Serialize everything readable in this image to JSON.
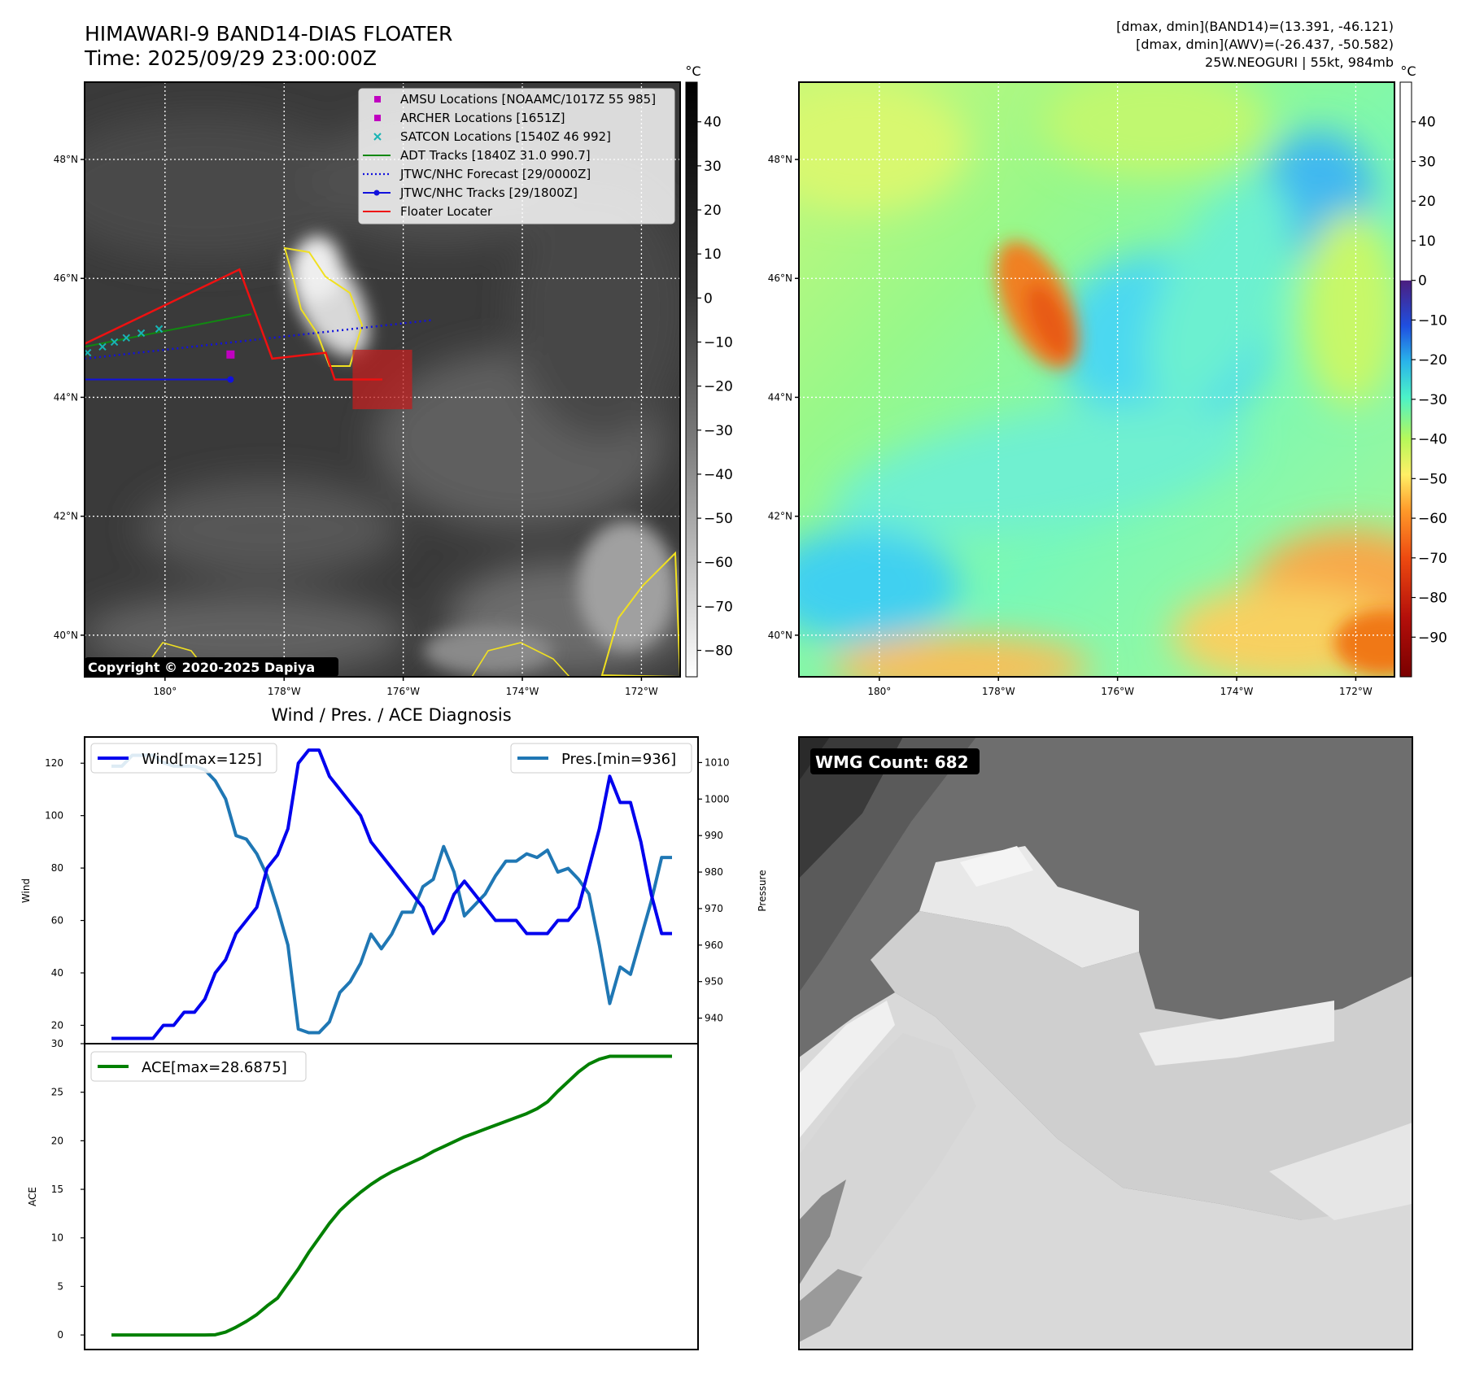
{
  "header": {
    "title_line1": "HIMAWARI-9 BAND14-DIAS FLOATER",
    "title_line2": "Time: 2025/09/29 23:00:00Z",
    "info_line1": "[dmax, dmin](BAND14)=(13.391, -46.121)",
    "info_line2": "[dmax, dmin](AWV)=(-26.437, -50.582)",
    "info_line3": "25W.NEOGURI | 55kt, 984mb"
  },
  "map": {
    "lat_labels": [
      "48°N",
      "46°N",
      "44°N",
      "42°N",
      "40°N"
    ],
    "lat_values": [
      48,
      46,
      44,
      42,
      40
    ],
    "lon_labels": [
      "180°",
      "178°W",
      "176°W",
      "174°W",
      "172°W"
    ],
    "lon_values": [
      180,
      178,
      176,
      174,
      172
    ],
    "lat_range": [
      39.3,
      49.3
    ],
    "lon_range": [
      181.35,
      171.35
    ],
    "copyright": "Copyright © 2020-2025 Dapiya",
    "legend": [
      {
        "label": "AMSU Locations [NOAAMC/1017Z 55 985]",
        "kind": "square",
        "color": "#c000c0"
      },
      {
        "label": "ARCHER Locations [1651Z]",
        "kind": "square",
        "color": "#c000c0"
      },
      {
        "label": "SATCON Locations [1540Z 46 992]",
        "kind": "cross",
        "color": "#18b4b4"
      },
      {
        "label": "ADT Tracks [1840Z 31.0 990.7]",
        "kind": "line",
        "color": "#118811"
      },
      {
        "label": "JTWC/NHC Forecast [29/0000Z]",
        "kind": "dotted",
        "color": "#1111dd"
      },
      {
        "label": "JTWC/NHC Tracks [29/1800Z]",
        "kind": "marker-line",
        "color": "#1111dd"
      },
      {
        "label": "Floater Locater",
        "kind": "line",
        "color": "#ee1111"
      }
    ],
    "floater_track": [
      [
        181.35,
        44.9
      ],
      [
        178.75,
        46.15
      ],
      [
        178.2,
        44.65
      ],
      [
        177.3,
        44.75
      ],
      [
        177.15,
        44.3
      ],
      [
        176.35,
        44.3
      ]
    ],
    "adt_track": [
      [
        181.35,
        44.85
      ],
      [
        178.55,
        45.4
      ]
    ],
    "forecast_track": [
      [
        181.35,
        44.65
      ],
      [
        175.5,
        45.3
      ]
    ],
    "jtwc_track": [
      [
        181.35,
        44.3
      ],
      [
        178.9,
        44.3
      ]
    ],
    "satcon_points": [
      [
        181.3,
        44.75
      ],
      [
        181.05,
        44.85
      ],
      [
        180.85,
        44.93
      ],
      [
        180.65,
        45.0
      ],
      [
        180.4,
        45.08
      ],
      [
        180.1,
        45.15
      ]
    ],
    "amsu_points": [
      [
        178.9,
        44.72
      ]
    ],
    "highlight_box": {
      "lon0": 176.85,
      "lon1": 175.85,
      "lat0": 44.8,
      "lat1": 43.8
    }
  },
  "colorbar_ir": {
    "unit": "°C",
    "ticks": [
      "40",
      "30",
      "20",
      "10",
      "0",
      "−10",
      "−20",
      "−30",
      "−40",
      "−50",
      "−60",
      "−70",
      "−80"
    ],
    "tick_values": [
      40,
      30,
      20,
      10,
      0,
      -10,
      -20,
      -30,
      -40,
      -50,
      -60,
      -70,
      -80
    ],
    "range": [
      49,
      -86
    ]
  },
  "colorbar_wv": {
    "unit": "°C",
    "ticks": [
      "40",
      "30",
      "20",
      "10",
      "0",
      "−10",
      "−20",
      "−30",
      "−40",
      "−50",
      "−60",
      "−70",
      "−80",
      "−90"
    ],
    "tick_values": [
      40,
      30,
      20,
      10,
      0,
      -10,
      -20,
      -30,
      -40,
      -50,
      -60,
      -70,
      -80,
      -90
    ],
    "range": [
      50,
      -100
    ]
  },
  "chart_data": [
    {
      "type": "line",
      "title": "Wind / Pres. / ACE Diagnosis",
      "ylabel": "Wind",
      "ylabel_right": "Pressure",
      "ylim": [
        13,
        130
      ],
      "ylim_right": [
        933,
        1017
      ],
      "yticks": [
        20,
        40,
        60,
        80,
        100,
        120
      ],
      "yticks_right": [
        940,
        950,
        960,
        970,
        980,
        990,
        1000,
        1010
      ],
      "series": [
        {
          "name": "Wind[max=125]",
          "color": "#0000ee",
          "values": [
            15,
            15,
            15,
            15,
            15,
            20,
            20,
            25,
            25,
            30,
            40,
            45,
            55,
            60,
            65,
            80,
            85,
            95,
            120,
            125,
            125,
            115,
            110,
            105,
            100,
            90,
            85,
            80,
            75,
            70,
            65,
            55,
            60,
            70,
            75,
            70,
            65,
            60,
            60,
            60,
            55,
            55,
            55,
            60,
            60,
            65,
            80,
            95,
            115,
            105,
            105,
            90,
            70,
            55,
            55
          ]
        },
        {
          "name": "Pres.[min=936]",
          "color": "#1f77b4",
          "values": [
            1009,
            1009,
            1012,
            1012,
            1012,
            1010,
            1009,
            1009,
            1009,
            1008,
            1005,
            1000,
            990,
            989,
            985,
            979,
            970,
            960,
            937,
            936,
            936,
            939,
            947,
            950,
            955,
            963,
            959,
            963,
            969,
            969,
            976,
            978,
            987,
            980,
            968,
            971,
            974,
            979,
            983,
            983,
            985,
            984,
            986,
            980,
            981,
            978,
            974,
            960,
            944,
            954,
            952,
            962,
            972,
            984,
            984
          ]
        }
      ]
    },
    {
      "type": "line",
      "ylabel": "ACE",
      "ylim": [
        -1.5,
        30
      ],
      "yticks": [
        0,
        5,
        10,
        15,
        20,
        25,
        30
      ],
      "series": [
        {
          "name": "ACE[max=28.6875]",
          "color": "#008000",
          "values": [
            0,
            0,
            0,
            0,
            0,
            0,
            0,
            0,
            0,
            0,
            0.02,
            0.3,
            0.8,
            1.4,
            2.1,
            3,
            3.8,
            5.3,
            6.8,
            8.5,
            10,
            11.5,
            12.8,
            13.8,
            14.7,
            15.5,
            16.2,
            16.8,
            17.3,
            17.8,
            18.3,
            18.9,
            19.4,
            19.9,
            20.4,
            20.8,
            21.2,
            21.6,
            22,
            22.4,
            22.8,
            23.3,
            24,
            25.1,
            26.1,
            27.1,
            27.9,
            28.4,
            28.7,
            28.7,
            28.7,
            28.7,
            28.7,
            28.7,
            28.7
          ]
        }
      ]
    }
  ],
  "wmg": {
    "label": "WMG Count: 682"
  }
}
